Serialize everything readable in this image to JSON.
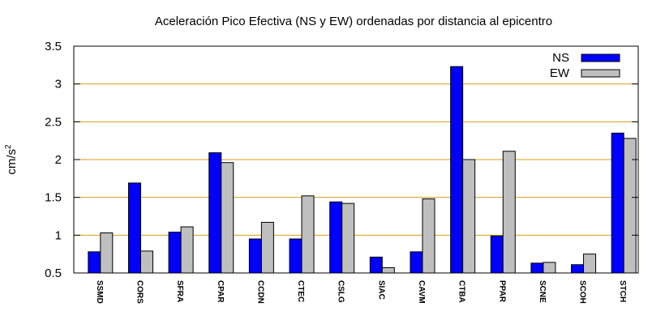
{
  "chart_data": {
    "type": "bar",
    "title": "Aceleración Pico Efectiva (NS y EW) ordenadas por distancia al epicentro",
    "ylabel": "cm/s",
    "ylabel_sup": "2",
    "ylim": [
      0.5,
      3.5
    ],
    "yticks": [
      "0.5",
      "1",
      "1.5",
      "2",
      "2.5",
      "3",
      "3.5"
    ],
    "grid": true,
    "legend_position": "top-right",
    "categories": [
      "SSMD",
      "CORS",
      "SFRA",
      "CPAR",
      "CCDN",
      "CTEC",
      "CSLG",
      "SIAC",
      "CAVM",
      "CTBA",
      "PPAR",
      "SCNE",
      "SCOH",
      "STCH"
    ],
    "series": [
      {
        "name": "NS",
        "color": "#0000ff",
        "values": [
          0.78,
          1.69,
          1.04,
          2.09,
          0.95,
          0.95,
          1.44,
          0.71,
          0.78,
          3.23,
          0.99,
          0.63,
          0.61,
          2.35
        ]
      },
      {
        "name": "EW",
        "color": "#bfbfbf",
        "values": [
          1.03,
          0.79,
          1.11,
          1.96,
          1.17,
          1.52,
          1.42,
          0.57,
          1.48,
          2.0,
          2.11,
          0.64,
          0.75,
          2.28
        ]
      }
    ]
  }
}
